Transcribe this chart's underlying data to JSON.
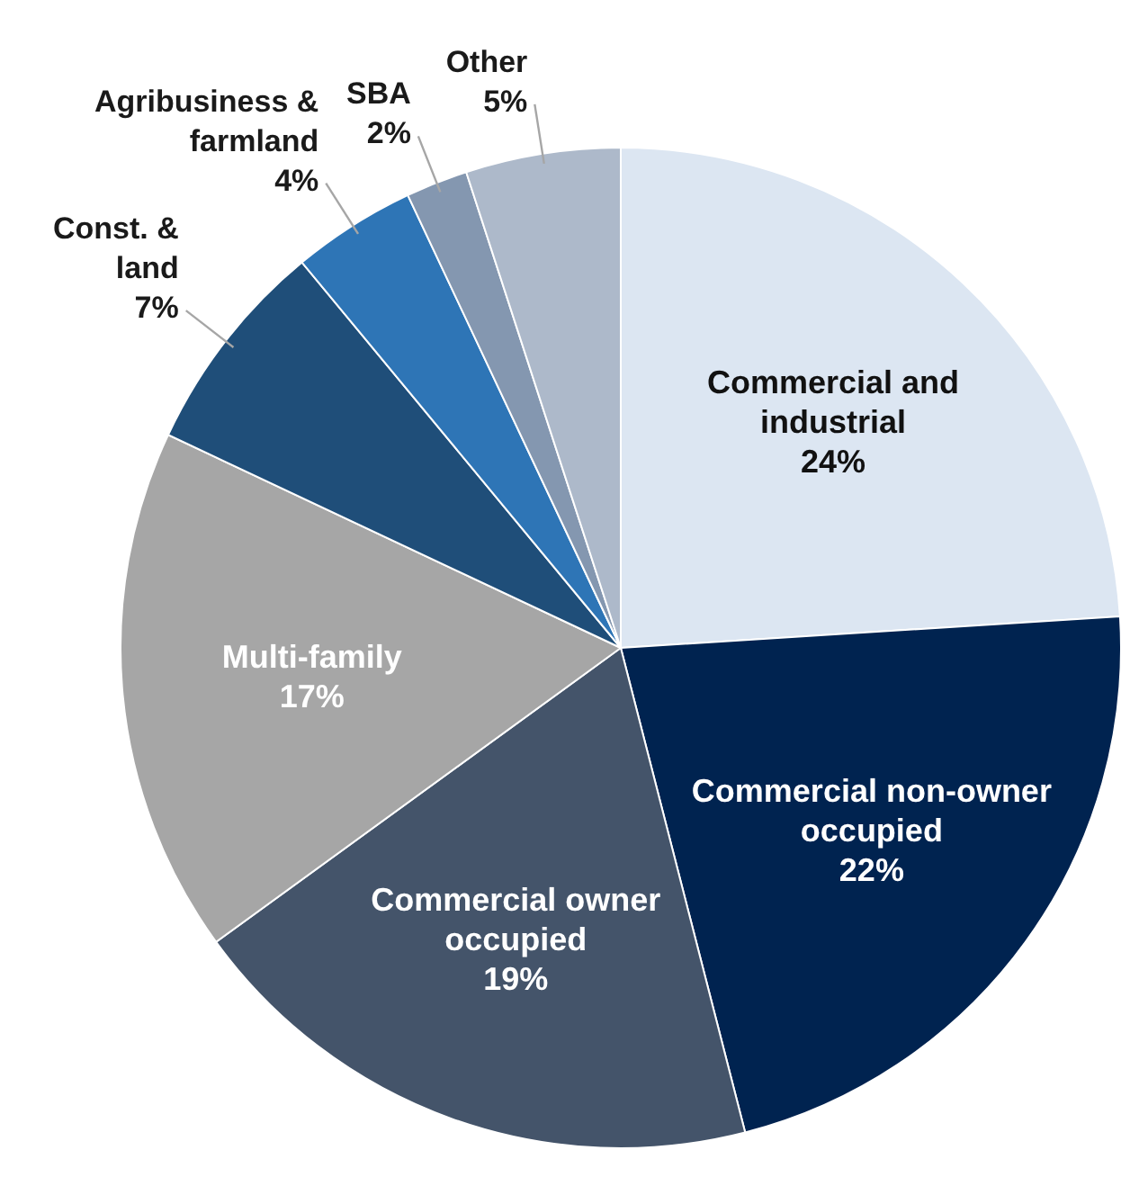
{
  "chart_data": {
    "type": "pie",
    "categories": [
      "Commercial and industrial",
      "Commercial non-owner occupied",
      "Commercial owner occupied",
      "Multi-family",
      "Const. & land",
      "Agribusiness & farmland",
      "SBA",
      "Other"
    ],
    "values": [
      24,
      22,
      19,
      17,
      7,
      4,
      2,
      5
    ],
    "colors": [
      "#dce6f2",
      "#002350",
      "#44546a",
      "#a6a6a6",
      "#1f4e79",
      "#2e75b6",
      "#8497b0",
      "#adb9ca"
    ],
    "value_labels": [
      "24%",
      "22%",
      "19%",
      "17%",
      "7%",
      "4%",
      "2%",
      "5%"
    ]
  }
}
